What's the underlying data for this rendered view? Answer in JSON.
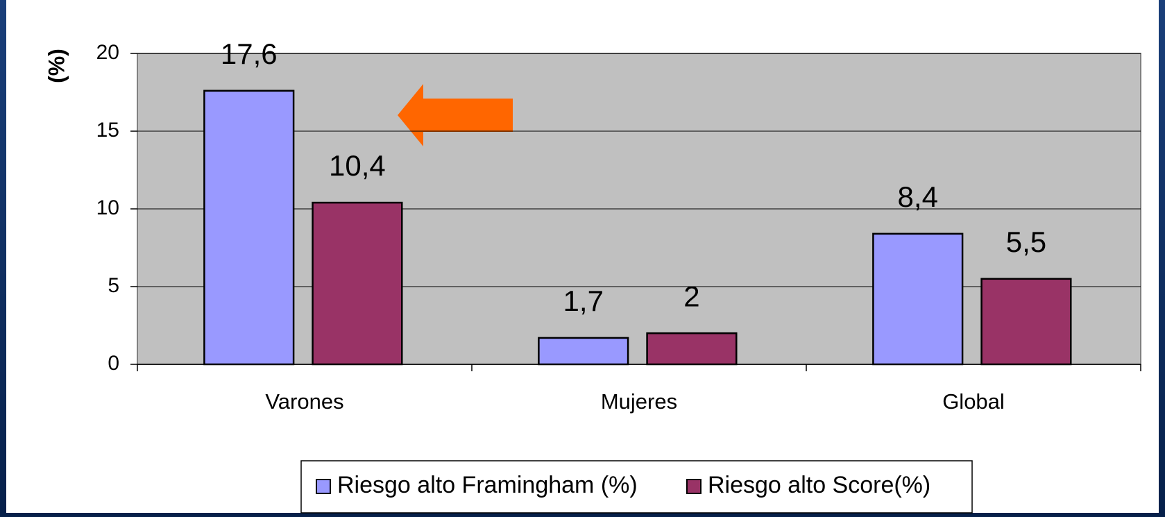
{
  "chart_data": {
    "type": "bar",
    "y_label": "(%)",
    "categories": [
      "Varones",
      "Mujeres",
      "Global"
    ],
    "series": [
      {
        "name": "Riesgo alto Framingham (%)",
        "color": "#9999ff",
        "values": [
          17.6,
          1.7,
          8.4
        ],
        "value_labels": [
          "17,6",
          "1,7",
          "8,4"
        ]
      },
      {
        "name": "Riesgo alto Score(%)",
        "color": "#993366",
        "values": [
          10.4,
          2,
          5.5
        ],
        "value_labels": [
          "10,4",
          "2",
          "5,5"
        ]
      }
    ],
    "ylim": [
      0,
      20
    ],
    "yticks": [
      0,
      5,
      10,
      15,
      20
    ],
    "grid": true,
    "legend": "bottom"
  }
}
